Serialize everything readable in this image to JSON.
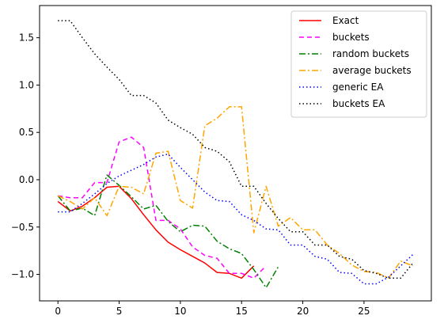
{
  "chart_data": {
    "type": "line",
    "title": "",
    "xlabel": "",
    "ylabel": "",
    "xlim": [
      -1.5,
      30.5
    ],
    "ylim": [
      -1.28,
      1.84
    ],
    "xticks": [
      0,
      5,
      10,
      15,
      20,
      25
    ],
    "yticks": [
      -1.0,
      -0.5,
      0.0,
      0.5,
      1.0,
      1.5
    ],
    "xtick_labels": [
      "0",
      "5",
      "10",
      "15",
      "20",
      "25"
    ],
    "ytick_labels": [
      "−1.0",
      "−0.5",
      "0.0",
      "0.5",
      "1.0",
      "1.5"
    ],
    "grid": false,
    "legend_position": "top-right",
    "series": [
      {
        "name": "Exact",
        "color": "#ff0000",
        "dash": "solid",
        "x": [
          0,
          1,
          2,
          3,
          4,
          5,
          6,
          7,
          8,
          9,
          10,
          11,
          12,
          13,
          14,
          15,
          16
        ],
        "y": [
          -0.23,
          -0.33,
          -0.28,
          -0.19,
          -0.08,
          -0.07,
          -0.2,
          -0.37,
          -0.53,
          -0.66,
          -0.74,
          -0.81,
          -0.88,
          -0.98,
          -0.99,
          -1.04,
          -0.91
        ]
      },
      {
        "name": "buckets",
        "color": "#ff00ff",
        "dash": "dashed",
        "x": [
          0,
          1,
          2,
          3,
          4,
          5,
          6,
          7,
          8,
          9,
          10,
          11,
          12,
          13,
          14,
          15,
          16,
          17
        ],
        "y": [
          -0.17,
          -0.19,
          -0.19,
          -0.03,
          -0.03,
          0.4,
          0.45,
          0.34,
          -0.43,
          -0.43,
          -0.52,
          -0.71,
          -0.8,
          -0.83,
          -0.99,
          -0.99,
          -1.04,
          -0.91
        ]
      },
      {
        "name": "random buckets",
        "color": "#008000",
        "dash": "dashdot",
        "x": [
          0,
          1,
          2,
          3,
          4,
          5,
          6,
          7,
          8,
          9,
          10,
          11,
          12,
          13,
          14,
          15,
          16,
          17,
          18
        ],
        "y": [
          -0.17,
          -0.33,
          -0.3,
          -0.38,
          0.05,
          -0.06,
          -0.18,
          -0.31,
          -0.27,
          -0.44,
          -0.55,
          -0.48,
          -0.49,
          -0.65,
          -0.73,
          -0.78,
          -0.95,
          -1.14,
          -0.92
        ]
      },
      {
        "name": "average buckets",
        "color": "#ffa500",
        "dash": "dashdot",
        "x": [
          0,
          1,
          2,
          3,
          4,
          5,
          6,
          7,
          8,
          9,
          10,
          11,
          12,
          13,
          14,
          15,
          16,
          17,
          18,
          19,
          20,
          21,
          22,
          23,
          24,
          25,
          26,
          27,
          28,
          29
        ],
        "y": [
          -0.17,
          -0.23,
          -0.31,
          -0.19,
          -0.38,
          -0.07,
          -0.08,
          -0.15,
          0.28,
          0.3,
          -0.22,
          -0.3,
          0.57,
          0.65,
          0.77,
          0.77,
          -0.56,
          -0.07,
          -0.49,
          -0.4,
          -0.53,
          -0.53,
          -0.69,
          -0.78,
          -0.9,
          -0.97,
          -0.98,
          -1.04,
          -0.86,
          -0.91
        ]
      },
      {
        "name": "generic EA",
        "color": "#0000ff",
        "dash": "dotted",
        "x": [
          0,
          1,
          2,
          3,
          4,
          5,
          6,
          7,
          8,
          9,
          10,
          11,
          12,
          13,
          14,
          15,
          16,
          17,
          18,
          19,
          20,
          21,
          22,
          23,
          24,
          25,
          26,
          27,
          28,
          29
        ],
        "y": [
          -0.34,
          -0.34,
          -0.25,
          -0.15,
          -0.04,
          0.04,
          0.1,
          0.16,
          0.24,
          0.27,
          0.13,
          0.0,
          -0.13,
          -0.22,
          -0.23,
          -0.37,
          -0.43,
          -0.52,
          -0.53,
          -0.69,
          -0.69,
          -0.81,
          -0.84,
          -0.98,
          -0.99,
          -1.1,
          -1.1,
          -1.03,
          -0.91,
          -0.79
        ]
      },
      {
        "name": "buckets EA",
        "color": "#000000",
        "dash": "dotted",
        "x": [
          0,
          1,
          2,
          3,
          4,
          5,
          6,
          7,
          8,
          9,
          10,
          11,
          12,
          13,
          14,
          15,
          16,
          17,
          18,
          19,
          20,
          21,
          22,
          23,
          24,
          25,
          26,
          27,
          28,
          29
        ],
        "y": [
          1.68,
          1.68,
          1.5,
          1.33,
          1.19,
          1.06,
          0.89,
          0.89,
          0.81,
          0.63,
          0.55,
          0.48,
          0.34,
          0.3,
          0.19,
          -0.07,
          -0.07,
          -0.25,
          -0.41,
          -0.55,
          -0.55,
          -0.69,
          -0.69,
          -0.81,
          -0.84,
          -0.96,
          -0.99,
          -1.04,
          -1.04,
          -0.88
        ]
      }
    ]
  }
}
